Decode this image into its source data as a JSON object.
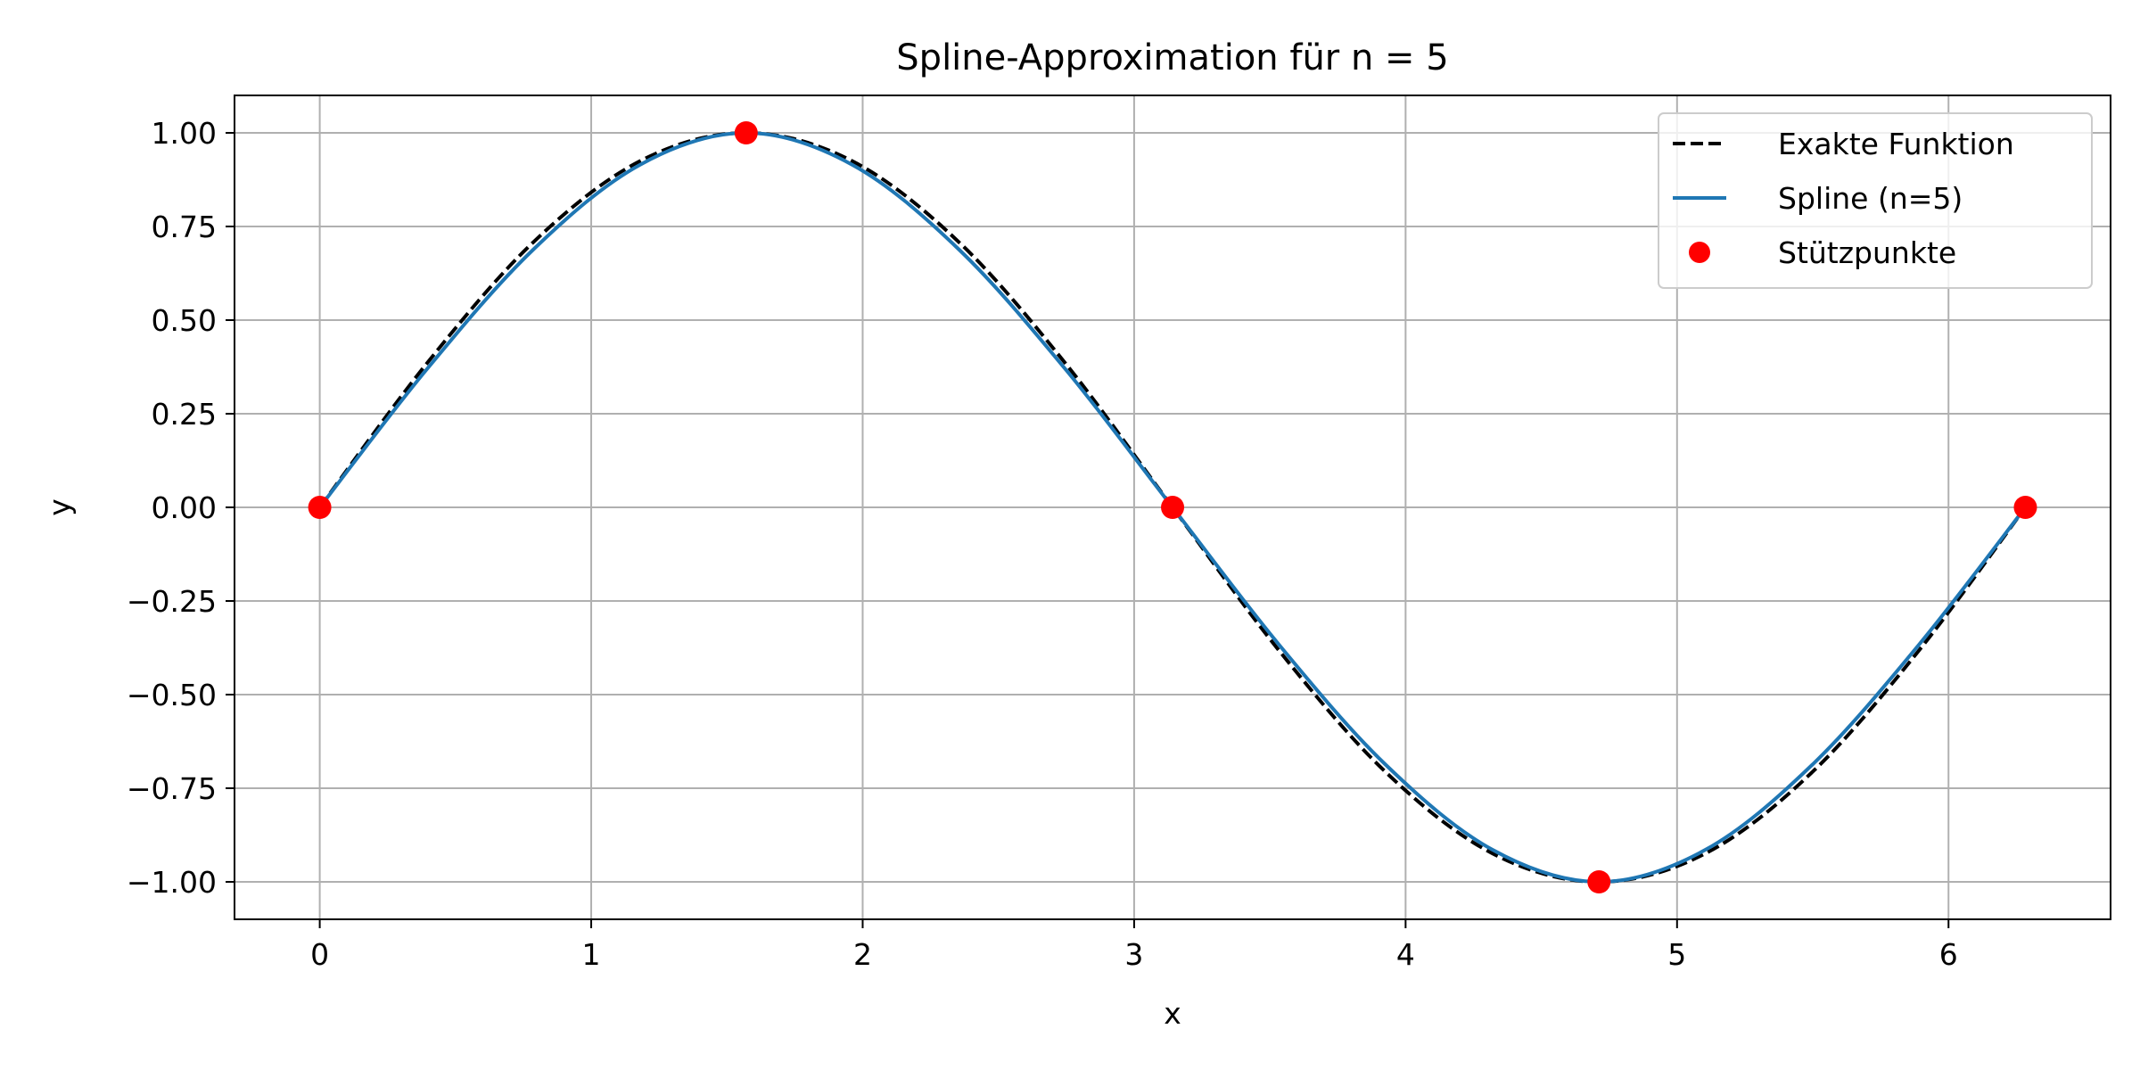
{
  "chart_data": {
    "type": "line",
    "title": "Spline-Approximation für n = 5",
    "xlabel": "x",
    "ylabel": "y",
    "xlim": [
      -0.314,
      6.597
    ],
    "ylim": [
      -1.1,
      1.1
    ],
    "x_ticks": [
      0,
      1,
      2,
      3,
      4,
      5,
      6
    ],
    "x_tick_labels": [
      "0",
      "1",
      "2",
      "3",
      "4",
      "5",
      "6"
    ],
    "y_ticks": [
      1.0,
      0.75,
      0.5,
      0.25,
      0.0,
      -0.25,
      -0.5,
      -0.75,
      -1.0
    ],
    "y_tick_labels": [
      "1.00",
      "0.75",
      "0.50",
      "0.25",
      "0.00",
      "−0.25",
      "−0.50",
      "−0.75",
      "−1.00"
    ],
    "grid": true,
    "legend_position": "top-right",
    "series": [
      {
        "name": "Exakte Funktion",
        "style": "dashed",
        "color": "#000000",
        "x": [
          0,
          0.3927,
          0.7854,
          1.1781,
          1.5708,
          1.9635,
          2.3562,
          2.7489,
          3.1416,
          3.5343,
          3.927,
          4.3197,
          4.7124,
          5.1051,
          5.4978,
          5.8905,
          6.2832
        ],
        "y": [
          0,
          0.3827,
          0.7071,
          0.9239,
          1.0,
          0.9239,
          0.7071,
          0.3827,
          0.0,
          -0.3827,
          -0.7071,
          -0.9239,
          -1.0,
          -0.9239,
          -0.7071,
          -0.3827,
          0.0
        ]
      },
      {
        "name": "Spline (n=5)",
        "style": "solid",
        "color": "#1f77b4",
        "x": [
          0,
          0.3927,
          0.7854,
          1.1781,
          1.5708,
          1.9635,
          2.3562,
          2.7489,
          3.1416,
          3.5343,
          3.927,
          4.3197,
          4.7124,
          5.1051,
          5.4978,
          5.8905,
          6.2832
        ],
        "y": [
          0,
          0.3672,
          0.6875,
          0.9141,
          1.0,
          0.9141,
          0.6875,
          0.3672,
          0.0,
          -0.3672,
          -0.6875,
          -0.9141,
          -1.0,
          -0.9141,
          -0.6875,
          -0.3672,
          0.0
        ]
      },
      {
        "name": "Stützpunkte",
        "style": "markers",
        "color": "#ff0000",
        "x": [
          0,
          1.5708,
          3.1416,
          4.7124,
          6.2832
        ],
        "y": [
          0.0,
          1.0,
          0.0,
          -1.0,
          0.0
        ]
      }
    ]
  }
}
